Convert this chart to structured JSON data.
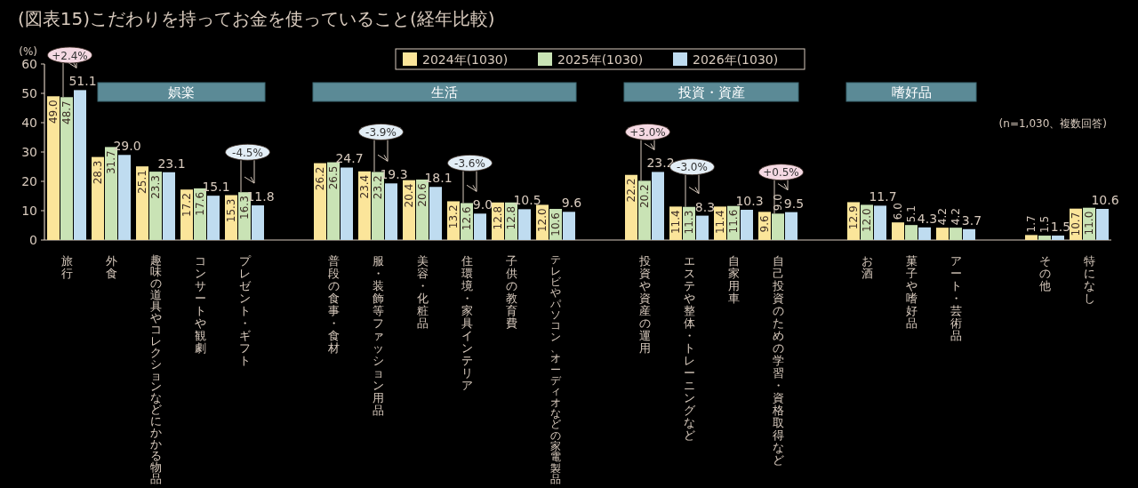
{
  "chart_data": {
    "type": "bar",
    "title": "(図表15)こだわりを持ってお金を使っていること(経年比較)",
    "ylabel": "(%)",
    "categories": [
      "旅行",
      "外食",
      "趣味の道具やコレクションなどにかかる物品",
      "コンサートや観劇",
      "プレゼント・ギフト",
      null,
      "普段の食事・食材",
      "服・装飾等ファッション用品",
      "美容・化粧品",
      "住環境・家具インテリア",
      "子供の教育費",
      "テレビやパソコン、オーディオなどの家電製品",
      null,
      "投資や資産の運用",
      "エステや整体・トレーニングなど",
      "自家用車",
      "自己投資のための学習・資格取得など",
      null,
      "お酒",
      "菓子や嗜好品",
      "アート・芸術品",
      null,
      "その他",
      "特になし"
    ],
    "series": [
      {
        "name": "2024年(1030)",
        "color": "#fbe59a",
        "values": [
          49.0,
          28.3,
          25.1,
          17.2,
          15.3,
          null,
          26.2,
          23.4,
          20.4,
          13.2,
          12.8,
          12.0,
          null,
          22.2,
          11.4,
          11.4,
          9.6,
          null,
          12.9,
          6.0,
          4.2,
          null,
          1.7,
          10.7
        ],
        "value_labels": [
          "49.0",
          "28.3",
          "25.1",
          "17.2",
          "15.3",
          null,
          "26.2",
          "23.4",
          "20.4",
          "13.2",
          "12.8",
          "12.0",
          null,
          "22.2",
          "11.4",
          "11.4",
          "9.6",
          null,
          "12.9",
          "6.0",
          "4.2",
          null,
          "1.7",
          "10.7"
        ]
      },
      {
        "name": "2025年(1030)",
        "color": "#c9e3b5",
        "values": [
          48.7,
          31.7,
          23.3,
          17.6,
          16.3,
          null,
          26.5,
          23.2,
          20.6,
          12.6,
          12.8,
          10.6,
          null,
          20.2,
          11.3,
          11.6,
          9.0,
          null,
          12.0,
          5.1,
          4.2,
          null,
          1.5,
          11.0
        ],
        "value_labels": [
          "48.7",
          "31.7",
          "23.3",
          "17.6",
          "16.3",
          null,
          "26.5",
          "23.2",
          "20.6",
          "12.6",
          "12.8",
          "10.6",
          null,
          "20.2",
          "11.3",
          "11.6",
          "9.0",
          null,
          "12.0",
          "5.1",
          "4.2",
          null,
          "1.5",
          "11.0"
        ]
      },
      {
        "name": "2026年(1030)",
        "color": "#bfdcf0",
        "values": [
          51.1,
          29.0,
          23.1,
          15.1,
          11.8,
          null,
          24.7,
          19.3,
          18.1,
          9.0,
          10.5,
          9.6,
          null,
          23.2,
          8.3,
          10.3,
          9.5,
          null,
          11.7,
          4.3,
          3.7,
          null,
          1.5,
          10.6
        ],
        "value_labels": [
          "51.1",
          "29.0",
          "23.1",
          "15.1",
          "11.8",
          null,
          "24.7",
          "19.3",
          "18.1",
          "9.0",
          "10.5",
          "9.6",
          null,
          "23.2",
          "8.3",
          "10.3",
          "9.5",
          null,
          "11.7",
          "4.3",
          "3.7",
          null,
          "1.5",
          "10.6"
        ]
      }
    ],
    "ylim": [
      0,
      60
    ],
    "yticks": [
      0,
      10,
      20,
      30,
      40,
      50,
      60
    ],
    "legend": "top",
    "annotations": [
      "娯楽",
      "生活",
      "投資・資産",
      "嗜好品",
      {
        "text": "+2.4%",
        "x": "旅行",
        "y": 48.7
      },
      {
        "text": "-4.5%",
        "x": "プレゼント・ギフト",
        "y": 16.3
      },
      {
        "text": "-3.9%",
        "x": "服・装飾等ファッション用品",
        "y": 23.2
      },
      {
        "text": "-3.6%",
        "x": "住環境・家具インテリア",
        "y": 12.6
      },
      {
        "text": "+3.0%",
        "x": "投資や資産の運用",
        "y": 20.2
      },
      {
        "text": "-3.0%",
        "x": "エステや整体・トレーニングなど",
        "y": 11.3
      },
      {
        "text": "+0.5%",
        "x": "自己投資のための学習・資格取得など",
        "y": 9.0
      },
      "(n=1,030、複数回答)"
    ]
  }
}
